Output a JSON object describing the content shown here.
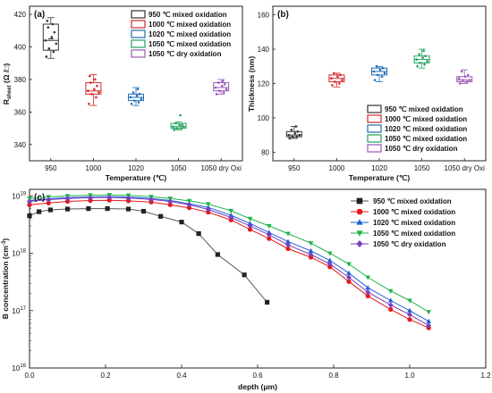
{
  "chart_data": [
    {
      "panel": "(a)",
      "type": "box",
      "xlabel": "Temperature (℃)",
      "ylabel": "R",
      "ylabel_sub": "sheet",
      "ylabel_unit": " (Ω /□)",
      "categories": [
        "950",
        "1000",
        "1020",
        "1050",
        "1050 dry Oxi"
      ],
      "ylim": [
        330,
        425
      ],
      "yticks": [
        340,
        360,
        380,
        400,
        420
      ],
      "colors": [
        "#333333",
        "#d62728",
        "#1f6fb4",
        "#21a35b",
        "#9b59b6"
      ],
      "legend": [
        "950 ℃ mixed oxidation",
        "1000 ℃ mixed oxidation",
        "1020 ℃ mixed oxidation",
        "1050 ℃ mixed oxidation",
        "1050 ℃ dry oxidation"
      ],
      "legend_position": "top-right",
      "boxes": [
        {
          "q1": 398,
          "median": 404,
          "q3": 414,
          "whisker_low": 393,
          "whisker_high": 418,
          "mean": 405,
          "points": [
            394,
            397,
            399,
            402,
            404,
            406,
            409,
            412,
            414,
            416
          ]
        },
        {
          "q1": 371,
          "median": 373,
          "q3": 378,
          "whisker_low": 364,
          "whisker_high": 383,
          "points": [
            365,
            369,
            371,
            372,
            373,
            374,
            376,
            378,
            380,
            382
          ]
        },
        {
          "q1": 367,
          "median": 369,
          "q3": 371,
          "whisker_low": 364,
          "whisker_high": 375,
          "points": [
            365,
            366,
            367,
            368,
            369,
            370,
            371,
            372,
            374
          ]
        },
        {
          "q1": 350,
          "median": 351,
          "q3": 353,
          "whisker_low": 349,
          "whisker_high": 354,
          "points": [
            349,
            350,
            350,
            351,
            351,
            352,
            352,
            353,
            358
          ]
        },
        {
          "q1": 373,
          "median": 375,
          "q3": 378,
          "whisker_low": 371,
          "whisker_high": 380,
          "points": [
            371,
            372,
            373,
            374,
            375,
            376,
            377,
            378,
            379
          ]
        }
      ]
    },
    {
      "panel": "(b)",
      "type": "box",
      "xlabel": "Temperature (℃)",
      "ylabel": "Thickness (nm)",
      "categories": [
        "950",
        "1000",
        "1020",
        "1050",
        "1050 dry Oxi"
      ],
      "ylim": [
        75,
        165
      ],
      "yticks": [
        80,
        100,
        120,
        140,
        160
      ],
      "colors": [
        "#333333",
        "#d62728",
        "#1f6fb4",
        "#21a35b",
        "#9b59b6"
      ],
      "legend": [
        "950 ℃ mixed oxidation",
        "1000 ℃ mixed oxidation",
        "1020 ℃ mixed oxidation",
        "1050 ℃ mixed oxidation",
        "1050 ℃ dry oxidation"
      ],
      "legend_position": "bottom-right",
      "boxes": [
        {
          "q1": 89,
          "median": 90,
          "q3": 92,
          "whisker_low": 88,
          "whisker_high": 95,
          "points": [
            88,
            89,
            89,
            90,
            90,
            91,
            92,
            93,
            95
          ]
        },
        {
          "q1": 121,
          "median": 123,
          "q3": 125,
          "whisker_low": 118,
          "whisker_high": 126,
          "points": [
            119,
            120,
            121,
            122,
            123,
            124,
            125,
            126
          ]
        },
        {
          "q1": 125,
          "median": 127,
          "q3": 129,
          "whisker_low": 121,
          "whisker_high": 130,
          "points": [
            122,
            124,
            125,
            126,
            127,
            128,
            129,
            130
          ]
        },
        {
          "q1": 132,
          "median": 134,
          "q3": 136,
          "whisker_low": 129,
          "whisker_high": 140,
          "points": [
            130,
            131,
            132,
            133,
            134,
            135,
            136,
            137,
            139
          ]
        },
        {
          "q1": 121,
          "median": 122,
          "q3": 124,
          "whisker_low": 120,
          "whisker_high": 128,
          "points": [
            120,
            121,
            122,
            122,
            123,
            124,
            125,
            127
          ]
        }
      ]
    },
    {
      "panel": "(c)",
      "type": "line",
      "xlabel": "depth (μm)",
      "ylabel": "B concentration (cm",
      "ylabel_sup": "-3",
      "ylabel_close": ")",
      "yscale": "log",
      "xlim": [
        0,
        1.2
      ],
      "ylim": [
        1e+16,
        1.3e+19
      ],
      "xticks": [
        "0.0",
        "0.2",
        "0.4",
        "0.6",
        "0.8",
        "1.0",
        "1.2"
      ],
      "yticks": [
        {
          "value": 1e+16,
          "base": "10",
          "exp": "16"
        },
        {
          "value": 1e+17,
          "base": "10",
          "exp": "17"
        },
        {
          "value": 1e+18,
          "base": "10",
          "exp": "18"
        },
        {
          "value": 1e+19,
          "base": "10",
          "exp": "19"
        }
      ],
      "legend_position": "top-right",
      "series": [
        {
          "name": "950 ℃ mixed oxidation",
          "color": "#222222",
          "marker": "square",
          "x": [
            0,
            0.025,
            0.055,
            0.1,
            0.155,
            0.205,
            0.26,
            0.3,
            0.345,
            0.4,
            0.445,
            0.495,
            0.565,
            0.625
          ],
          "y": [
            4.5e+18,
            5.3e+18,
            5.7e+18,
            5.9e+18,
            6e+18,
            6e+18,
            5.9e+18,
            5.4e+18,
            4.4e+18,
            3.5e+18,
            2.2e+18,
            9.5e+17,
            4.2e+17,
            1.4e+17
          ]
        },
        {
          "name": "1000 ℃ mixed oxidation",
          "color": "#e3191c",
          "marker": "circle",
          "x": [
            0,
            0.05,
            0.1,
            0.16,
            0.21,
            0.26,
            0.32,
            0.37,
            0.42,
            0.47,
            0.53,
            0.58,
            0.63,
            0.68,
            0.74,
            0.79,
            0.84,
            0.89,
            0.95,
            1.0,
            1.05
          ],
          "y": [
            7e+18,
            7.5e+18,
            8e+18,
            8.3e+18,
            8.4e+18,
            8.2e+18,
            7.8e+18,
            7e+18,
            6.2e+18,
            5.2e+18,
            3.8e+18,
            2.6e+18,
            1.8e+18,
            1.2e+18,
            8.5e+17,
            5.8e+17,
            3.2e+17,
            1.8e+17,
            1.05e+17,
            7e+16,
            5e+16
          ]
        },
        {
          "name": "1020 ℃ mixed oxidation",
          "color": "#1f5fd6",
          "marker": "triangle-up",
          "x": [
            0,
            0.05,
            0.1,
            0.16,
            0.21,
            0.26,
            0.32,
            0.37,
            0.42,
            0.47,
            0.53,
            0.58,
            0.63,
            0.68,
            0.74,
            0.79,
            0.84,
            0.89,
            0.95,
            1.0,
            1.05
          ],
          "y": [
            8.3e+18,
            8.9e+18,
            9.3e+18,
            9.6e+18,
            9.7e+18,
            9.5e+18,
            9e+18,
            8.3e+18,
            7.3e+18,
            6.3e+18,
            4.6e+18,
            3.3e+18,
            2.3e+18,
            1.6e+18,
            1.1e+18,
            7.5e+17,
            4.5e+17,
            2.5e+17,
            1.5e+17,
            1e+17,
            6.5e+16
          ]
        },
        {
          "name": "1050 ℃ mixed oxidation",
          "color": "#1fb34a",
          "marker": "triangle-down",
          "x": [
            0,
            0.05,
            0.1,
            0.16,
            0.21,
            0.26,
            0.32,
            0.37,
            0.42,
            0.47,
            0.53,
            0.58,
            0.63,
            0.68,
            0.74,
            0.79,
            0.84,
            0.89,
            0.95,
            1.0,
            1.05
          ],
          "y": [
            9e+18,
            9.6e+18,
            1e+19,
            1.03e+19,
            1.04e+19,
            1.02e+19,
            9.7e+18,
            9e+18,
            8.2e+18,
            7.2e+18,
            5.5e+18,
            4e+18,
            3e+18,
            2.2e+18,
            1.5e+18,
            1e+18,
            6.5e+17,
            3.8e+17,
            2.2e+17,
            1.5e+17,
            9.5e+16
          ]
        },
        {
          "name": "1050 ℃ dry oxidation",
          "color": "#7b3fbf",
          "marker": "diamond",
          "x": [
            0,
            0.05,
            0.1,
            0.16,
            0.21,
            0.26,
            0.32,
            0.37,
            0.42,
            0.47,
            0.53,
            0.58,
            0.63,
            0.68,
            0.74,
            0.79,
            0.84,
            0.89,
            0.95,
            1.0,
            1.05
          ],
          "y": [
            8e+18,
            8.6e+18,
            9e+18,
            9.3e+18,
            9.4e+18,
            9.2e+18,
            8.7e+18,
            8e+18,
            7e+18,
            5.8e+18,
            4.2e+18,
            3e+18,
            2.1e+18,
            1.4e+18,
            9.5e+17,
            6.5e+17,
            3.8e+17,
            2.1e+17,
            1.25e+17,
            8.5e+16,
            5.5e+16
          ]
        }
      ]
    }
  ]
}
